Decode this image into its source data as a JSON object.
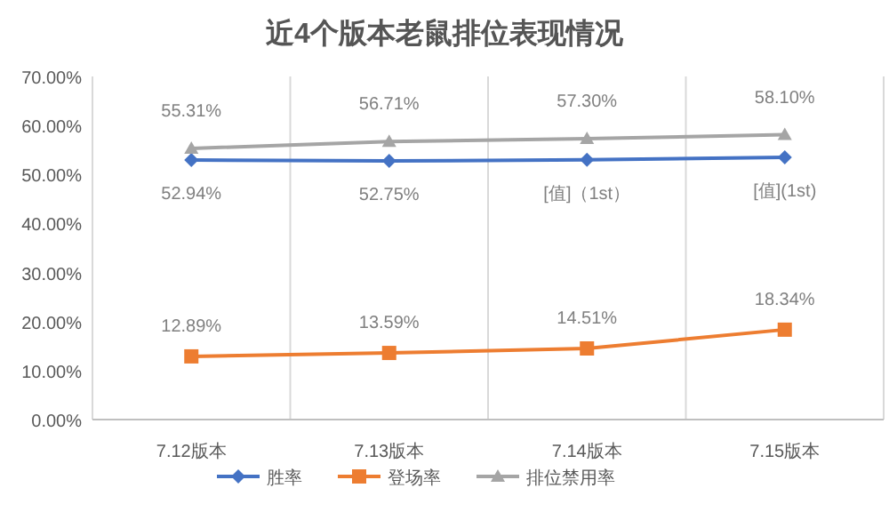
{
  "chart_data": {
    "type": "line",
    "title": "近4个版本老鼠排位表现情况",
    "categories": [
      "7.12版本",
      "7.13版本",
      "7.14版本",
      "7.15版本"
    ],
    "ylim": [
      0,
      70
    ],
    "yticks": [
      {
        "value": 0,
        "label": "0.00%"
      },
      {
        "value": 10,
        "label": "10.00%"
      },
      {
        "value": 20,
        "label": "20.00%"
      },
      {
        "value": 30,
        "label": "30.00%"
      },
      {
        "value": 40,
        "label": "40.00%"
      },
      {
        "value": 50,
        "label": "50.00%"
      },
      {
        "value": 60,
        "label": "60.00%"
      },
      {
        "value": 70,
        "label": "70.00%"
      }
    ],
    "annotations": [
      {
        "text": "[值]（1st）",
        "x": "7.14版本",
        "y": 53.0
      },
      {
        "text": "[值](1st)",
        "x": "7.15版本",
        "y": 53.5
      }
    ],
    "grid": "x",
    "legend": "bottom",
    "line_style": "solid",
    "series": [
      {
        "name": "胜率",
        "color": "#4472c4",
        "marker": "diamond",
        "values": [
          52.94,
          52.75,
          53.0,
          53.5
        ],
        "value_labels": [
          "52.94%",
          "52.75%",
          null,
          null
        ]
      },
      {
        "name": "登场率",
        "color": "#ed7d31",
        "marker": "square",
        "values": [
          12.89,
          13.59,
          14.51,
          18.34
        ],
        "value_labels": [
          "12.89%",
          "13.59%",
          "14.51%",
          "18.34%"
        ]
      },
      {
        "name": "排位禁用率",
        "color": "#a5a5a5",
        "marker": "triangle",
        "values": [
          55.31,
          56.71,
          57.3,
          58.1
        ],
        "value_labels": [
          "55.31%",
          "56.71%",
          "57.30%",
          "58.10%"
        ]
      }
    ]
  }
}
